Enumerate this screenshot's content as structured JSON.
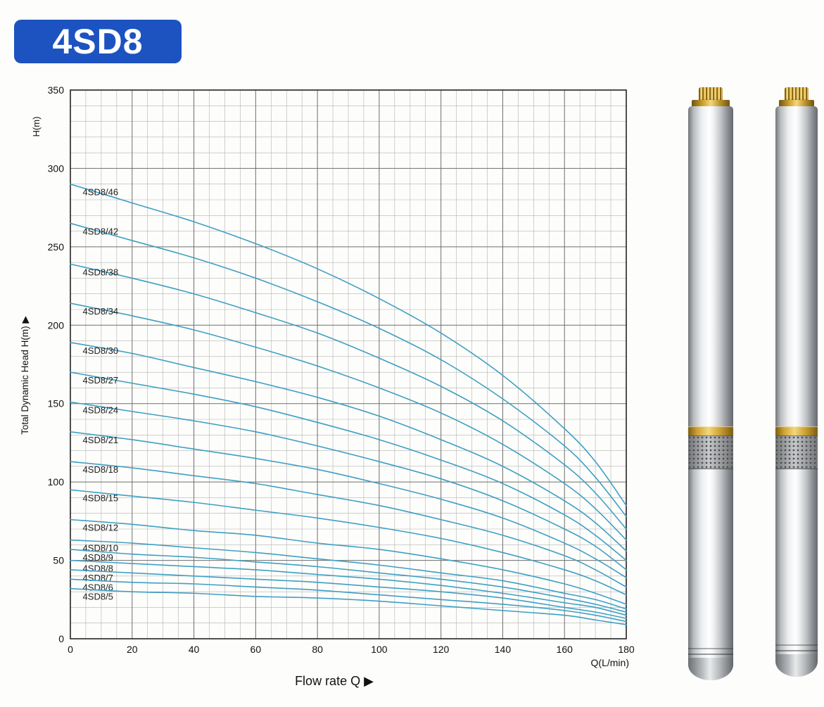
{
  "badge": {
    "label": "4SD8"
  },
  "colors": {
    "badge_bg": "#1d53c0",
    "curve": "#3f9fc4",
    "brass": "#d8a93c",
    "steel": "#c7cacd"
  },
  "illustrations": {
    "left": "submersible-pump-illustration",
    "right": "submersible-pump-illustration"
  },
  "chart_data": {
    "type": "line",
    "x_label": "Flow rate Q ▶",
    "x_unit_label": "Q(L/min)",
    "y_label": "Total Dynamic Head H(m) ▶",
    "y_unit_label": "H(m)",
    "xlim": [
      0,
      180
    ],
    "ylim": [
      0,
      350
    ],
    "x_major_step": 20,
    "y_major_step": 50,
    "x_minor_step": 5,
    "y_minor_step": 10,
    "x_ticks": [
      0,
      20,
      40,
      60,
      80,
      100,
      120,
      140,
      160,
      180
    ],
    "y_ticks": [
      0,
      50,
      100,
      150,
      200,
      250,
      300,
      350
    ],
    "grid": true,
    "legend": "inline-labels",
    "curve_color": "#3f9fc4",
    "grid_minor_color": "#b3b3b3",
    "grid_major_color": "#6e6e6e",
    "axis_color": "#222222",
    "x": [
      0,
      20,
      40,
      60,
      80,
      100,
      120,
      140,
      160,
      170,
      180
    ],
    "series": [
      {
        "name": "4SD8/46",
        "values": [
          290,
          278,
          266,
          252,
          236,
          217,
          195,
          168,
          134,
          113,
          85
        ]
      },
      {
        "name": "4SD8/42",
        "values": [
          265,
          254,
          243,
          230,
          215,
          198,
          178,
          153,
          123,
          103,
          78
        ]
      },
      {
        "name": "4SD8/38",
        "values": [
          239,
          230,
          220,
          208,
          195,
          179,
          161,
          139,
          111,
          93,
          70
        ]
      },
      {
        "name": "4SD8/34",
        "values": [
          214,
          206,
          197,
          186,
          174,
          160,
          144,
          124,
          99,
          83,
          63
        ]
      },
      {
        "name": "4SD8/30",
        "values": [
          189,
          182,
          173,
          164,
          154,
          142,
          127,
          110,
          88,
          74,
          56
        ]
      },
      {
        "name": "4SD8/27",
        "values": [
          170,
          163,
          156,
          148,
          138,
          127,
          114,
          99,
          79,
          66,
          50
        ]
      },
      {
        "name": "4SD8/24",
        "values": [
          151,
          145,
          139,
          132,
          123,
          113,
          102,
          88,
          70,
          59,
          44
        ]
      },
      {
        "name": "4SD8/21",
        "values": [
          132,
          127,
          121,
          115,
          108,
          99,
          89,
          77,
          61,
          51,
          39
        ]
      },
      {
        "name": "4SD8/18",
        "values": [
          113,
          109,
          104,
          99,
          92,
          85,
          76,
          66,
          53,
          44,
          33
        ]
      },
      {
        "name": "4SD8/15",
        "values": [
          95,
          91,
          87,
          82,
          77,
          71,
          64,
          55,
          44,
          37,
          28
        ]
      },
      {
        "name": "4SD8/12",
        "values": [
          76,
          73,
          69,
          66,
          61,
          57,
          51,
          44,
          35,
          29,
          22
        ]
      },
      {
        "name": "4SD8/10",
        "values": [
          63,
          61,
          58,
          55,
          51,
          47,
          42,
          37,
          29,
          25,
          19
        ]
      },
      {
        "name": "4SD8/9",
        "values": [
          57,
          54,
          52,
          49,
          46,
          42,
          38,
          33,
          26,
          22,
          17
        ]
      },
      {
        "name": "4SD8/8",
        "values": [
          50,
          48,
          46,
          44,
          41,
          38,
          34,
          29,
          23,
          20,
          15
        ]
      },
      {
        "name": "4SD8/7",
        "values": [
          44,
          42,
          40,
          38,
          36,
          33,
          30,
          26,
          20,
          17,
          13
        ]
      },
      {
        "name": "4SD8/6",
        "values": [
          38,
          36,
          35,
          33,
          31,
          28,
          25,
          22,
          18,
          15,
          11
        ]
      },
      {
        "name": "4SD8/5",
        "values": [
          32,
          30,
          29,
          27,
          26,
          24,
          21,
          18,
          15,
          12,
          9
        ]
      }
    ]
  }
}
